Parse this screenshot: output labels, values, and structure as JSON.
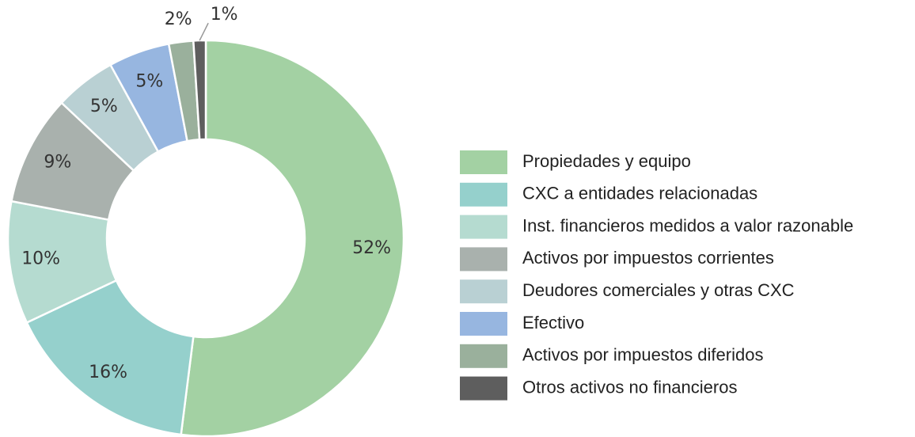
{
  "chart_data": {
    "type": "donut",
    "categories": [
      "Propiedades y equipo",
      "CXC a entidades relacionadas",
      "Inst. financieros medidos a valor razonable",
      "Activos por impuestos corrientes",
      "Deudores comerciales y otras CXC",
      "Efectivo",
      "Activos por impuestos diferidos",
      "Otros activos no financieros"
    ],
    "values": [
      52,
      16,
      10,
      9,
      5,
      5,
      2,
      1
    ],
    "value_labels": [
      "52%",
      "16%",
      "10%",
      "9%",
      "5%",
      "5%",
      "2%",
      "1%"
    ],
    "colors": [
      "#a3d1a3",
      "#95d0cc",
      "#b5dbd0",
      "#a9b1ad",
      "#b9d0d3",
      "#97b6e0",
      "#9ab09c",
      "#5e5e5e"
    ],
    "legend": "right"
  }
}
